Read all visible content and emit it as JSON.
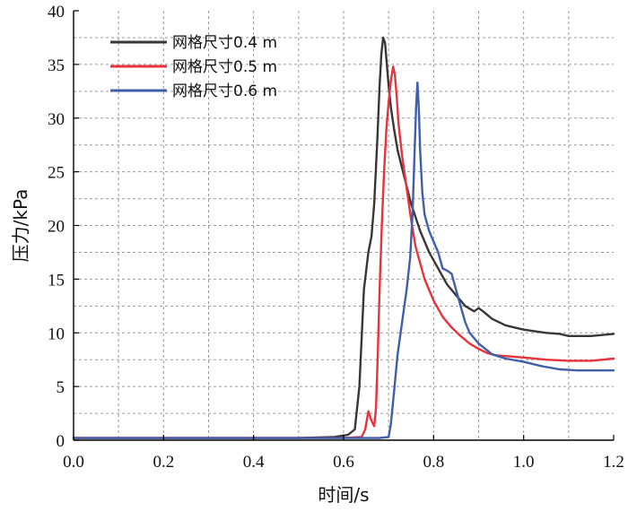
{
  "chart_data": {
    "type": "line",
    "title": "",
    "xlabel": "时间/s",
    "ylabel": "压力/kPa",
    "xlim": [
      0.0,
      1.2
    ],
    "ylim": [
      0,
      40
    ],
    "xticks": [
      0.0,
      0.2,
      0.4,
      0.6,
      0.8,
      1.0,
      1.2
    ],
    "yticks": [
      0,
      5,
      10,
      15,
      20,
      25,
      30,
      35,
      40
    ],
    "xtick_labels": [
      "0.0",
      "0.2",
      "0.4",
      "0.6",
      "0.8",
      "1.0",
      "1.2"
    ],
    "ytick_labels": [
      "0",
      "5",
      "10",
      "15",
      "20",
      "25",
      "30",
      "35",
      "40"
    ],
    "grid": true,
    "legend_position": "top-left",
    "series": [
      {
        "name": "网格尺寸0.4 m",
        "color": "#3b3636",
        "x": [
          0.0,
          0.5,
          0.58,
          0.61,
          0.625,
          0.635,
          0.645,
          0.655,
          0.662,
          0.668,
          0.675,
          0.68,
          0.684,
          0.688,
          0.692,
          0.696,
          0.7,
          0.705,
          0.712,
          0.72,
          0.735,
          0.75,
          0.77,
          0.79,
          0.81,
          0.83,
          0.85,
          0.87,
          0.89,
          0.9,
          0.91,
          0.93,
          0.96,
          1.0,
          1.05,
          1.08,
          1.1,
          1.15,
          1.2
        ],
        "y": [
          0.2,
          0.2,
          0.3,
          0.5,
          1.0,
          5.0,
          14.0,
          17.5,
          19.0,
          22.0,
          28.0,
          33.0,
          36.0,
          37.5,
          37.0,
          35.0,
          33.0,
          31.0,
          29.0,
          27.0,
          24.5,
          22.0,
          19.5,
          17.5,
          16.0,
          14.5,
          13.5,
          12.5,
          12.0,
          12.3,
          12.0,
          11.3,
          10.7,
          10.3,
          10.0,
          9.9,
          9.7,
          9.7,
          9.9
        ]
      },
      {
        "name": "网格尺寸0.5 m",
        "color": "#e8333d",
        "x": [
          0.0,
          0.6,
          0.64,
          0.648,
          0.655,
          0.662,
          0.668,
          0.672,
          0.676,
          0.68,
          0.685,
          0.69,
          0.695,
          0.7,
          0.705,
          0.71,
          0.714,
          0.718,
          0.722,
          0.73,
          0.74,
          0.75,
          0.76,
          0.78,
          0.8,
          0.82,
          0.84,
          0.86,
          0.88,
          0.9,
          0.92,
          0.94,
          0.97,
          1.0,
          1.05,
          1.1,
          1.15,
          1.2
        ],
        "y": [
          0.2,
          0.2,
          0.3,
          1.0,
          2.7,
          1.8,
          1.3,
          3.0,
          8.0,
          14.0,
          20.0,
          25.0,
          29.0,
          31.5,
          33.5,
          34.8,
          34.0,
          32.0,
          29.5,
          26.5,
          23.5,
          20.5,
          18.0,
          15.0,
          13.0,
          11.5,
          10.5,
          9.7,
          9.0,
          8.5,
          8.1,
          7.9,
          7.8,
          7.7,
          7.5,
          7.4,
          7.4,
          7.6
        ]
      },
      {
        "name": "网格尺寸0.6 m",
        "color": "#3f5faa",
        "x": [
          0.0,
          0.68,
          0.7,
          0.705,
          0.712,
          0.72,
          0.73,
          0.74,
          0.748,
          0.753,
          0.757,
          0.761,
          0.764,
          0.767,
          0.77,
          0.775,
          0.78,
          0.79,
          0.8,
          0.81,
          0.82,
          0.83,
          0.84,
          0.85,
          0.86,
          0.87,
          0.88,
          0.9,
          0.93,
          0.96,
          1.0,
          1.04,
          1.08,
          1.12,
          1.16,
          1.2
        ],
        "y": [
          0.2,
          0.2,
          0.3,
          1.5,
          4.5,
          8.0,
          11.0,
          14.0,
          17.0,
          21.0,
          26.0,
          31.0,
          33.3,
          31.0,
          27.0,
          23.0,
          21.0,
          19.5,
          18.5,
          17.5,
          16.0,
          15.8,
          15.5,
          14.0,
          12.5,
          11.0,
          10.0,
          9.0,
          8.0,
          7.6,
          7.3,
          6.9,
          6.6,
          6.5,
          6.5,
          6.5
        ]
      }
    ]
  }
}
